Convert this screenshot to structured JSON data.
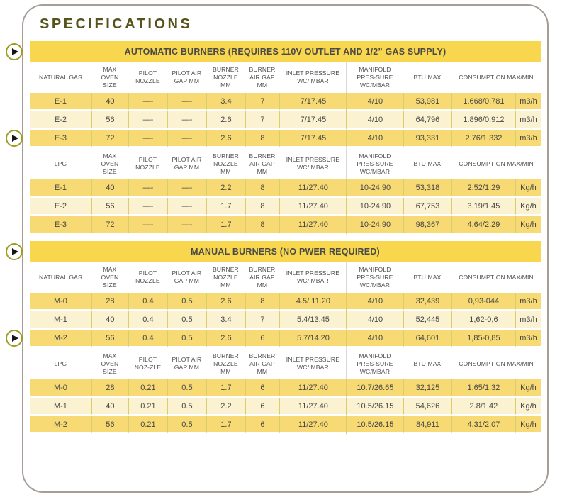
{
  "page_title": "SPECIFICATIONS",
  "colors": {
    "accent_yellow": "#F8D74E",
    "row_gold": "#F7DA74",
    "row_cream": "#FBF2D1",
    "divider_olive": "#D8CE6E",
    "frame_border": "#A69E96",
    "title_olive": "#56531D",
    "play_ring": "#9C9D22",
    "text_dark": "#474747"
  },
  "play_buttons": [
    {
      "icon": "play-icon"
    },
    {
      "icon": "play-icon"
    },
    {
      "icon": "play-icon"
    },
    {
      "icon": "play-icon"
    }
  ],
  "tables": [
    {
      "title": "AUTOMATIC BURNERS (REQUIRES 110V OUTLET AND  1/2” GAS SUPPLY)",
      "sections": [
        {
          "gas_type": "NATURAL GAS",
          "headers": [
            "MAX OVEN SIZE",
            "PILOT NOZZLE",
            "PILOT AIR GAP MM",
            "BURNER NOZZLE MM",
            "BURNER AIR GAP MM",
            "INLET PRESSURE WC/ MBAR",
            "MANIFOLD PRES-SURE WC/MBAR",
            "BTU MAX",
            "CONSUMPTION MAX/MIN"
          ],
          "rows": [
            {
              "model": "E-1",
              "values": [
                "40",
                "—-",
                "—-",
                "3.4",
                "7",
                "7/17.45",
                "4/10",
                "53,981",
                "1.668/0.781"
              ],
              "unit": "m3/h"
            },
            {
              "model": "E-2",
              "values": [
                "56",
                "—-",
                "—-",
                "2.6",
                "7",
                "7/17.45",
                "4/10",
                "64,796",
                "1.896/0.912"
              ],
              "unit": "m3/h"
            },
            {
              "model": "E-3",
              "values": [
                "72",
                "—-",
                "—-",
                "2.6",
                "8",
                "7/17.45",
                "4/10",
                "93,331",
                "2.76/1.332"
              ],
              "unit": "m3/h"
            }
          ]
        },
        {
          "gas_type": "LPG",
          "headers": [
            "MAX OVEN SIZE",
            "PILOT NOZZLE",
            "PILOT AIR GAP MM",
            "BURNER NOZZLE MM",
            "BURNER AIR GAP MM",
            "INLET PRESSURE WC/ MBAR",
            "MANIFOLD PRES-SURE WC/MBAR",
            "BTU MAX",
            "CONSUMPTION MAX/MIN"
          ],
          "rows": [
            {
              "model": "E-1",
              "values": [
                "40",
                "—-",
                "—-",
                "2.2",
                "8",
                "11/27.40",
                "10-24,90",
                "53,318",
                "2.52/1.29"
              ],
              "unit": "Kg/h"
            },
            {
              "model": "E-2",
              "values": [
                "56",
                "—-",
                "—-",
                "1.7",
                "8",
                "11/27.40",
                "10-24,90",
                "67,753",
                "3.19/1.45"
              ],
              "unit": "Kg/h"
            },
            {
              "model": "E-3",
              "values": [
                "72",
                "—-",
                "—-",
                "1.7",
                "8",
                "11/27.40",
                "10-24,90",
                "98,367",
                "4.64/2.29"
              ],
              "unit": "Kg/h"
            }
          ]
        }
      ]
    },
    {
      "title": "MANUAL BURNERS (NO PWER REQUIRED)",
      "sections": [
        {
          "gas_type": "NATURAL GAS",
          "headers": [
            "MAX OVEN SIZE",
            "PILOT NOZZLE",
            "PILOT AIR GAP MM",
            "BURNER NOZZLE MM",
            "BURNER AIR GAP MM",
            "INLET PRESSURE WC/ MBAR",
            "MANIFOLD PRES-SURE WC/MBAR",
            "BTU MAX",
            "CONSUMPTION MAX/MIN"
          ],
          "rows": [
            {
              "model": "M-0",
              "values": [
                "28",
                "0.4",
                "0.5",
                "2.6",
                "8",
                "4.5/ 11.20",
                "4/10",
                "32,439",
                "0,93-044"
              ],
              "unit": "m3/h"
            },
            {
              "model": "M-1",
              "values": [
                "40",
                "0.4",
                "0.5",
                "3.4",
                "7",
                "5.4/13.45",
                "4/10",
                "52,445",
                "1,62-0,6"
              ],
              "unit": "m3/h"
            },
            {
              "model": "M-2",
              "values": [
                "56",
                "0.4",
                "0.5",
                "2.6",
                "6",
                "5.7/14.20",
                "4/10",
                "64,601",
                "1,85-0,85"
              ],
              "unit": "m3/h"
            }
          ]
        },
        {
          "gas_type": "LPG",
          "headers": [
            "MAX OVEN SIZE",
            "PILOT NOZ-ZLE",
            "PILOT AIR GAP MM",
            "BURNER NOZZLE MM",
            "BURNER AIR GAP MM",
            "INLET PRESSURE WC/ MBAR",
            "MANIFOLD PRES-SURE WC/MBAR",
            "BTU MAX",
            "CONSUMPTION MAX/MIN"
          ],
          "rows": [
            {
              "model": "M-0",
              "values": [
                "28",
                "0.21",
                "0.5",
                "1.7",
                "6",
                "11/27.40",
                "10.7/26.65",
                "32,125",
                "1.65/1.32"
              ],
              "unit": "Kg/h"
            },
            {
              "model": "M-1",
              "values": [
                "40",
                "0.21",
                "0.5",
                "2.2",
                "6",
                "11/27.40",
                "10.5/26.15",
                "54,626",
                "2.8/1.42"
              ],
              "unit": "Kg/h"
            },
            {
              "model": "M-2",
              "values": [
                "56",
                "0.21",
                "0.5",
                "1.7",
                "6",
                "11/27.40",
                "10.5/26.15",
                "84,911",
                "4.31/2.07"
              ],
              "unit": "Kg/h"
            }
          ]
        }
      ]
    }
  ]
}
